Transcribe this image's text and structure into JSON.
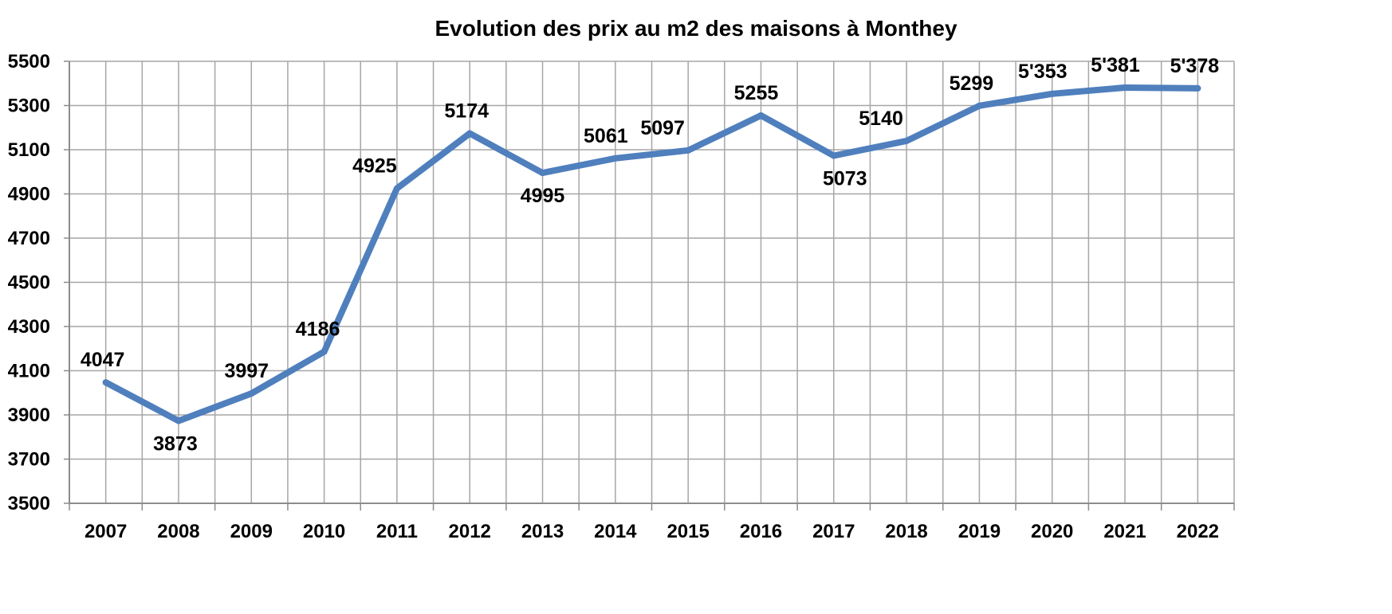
{
  "chart_data": {
    "type": "line",
    "title": "Evolution des prix au m2 des maisons à Monthey",
    "xlabel": "",
    "ylabel": "",
    "x": [
      "2007",
      "2008",
      "2009",
      "2010",
      "2011",
      "2012",
      "2013",
      "2014",
      "2015",
      "2016",
      "2017",
      "2018",
      "2019",
      "2020",
      "2021",
      "2022"
    ],
    "series": [
      {
        "values": [
          4047,
          3873,
          3997,
          4186,
          4925,
          5174,
          4995,
          5061,
          5097,
          5255,
          5073,
          5140,
          5299,
          5353,
          5381,
          5378
        ],
        "data_labels": [
          "4047",
          "3873",
          "3997",
          "4186",
          "4925",
          "5174",
          "4995",
          "5061",
          "5097",
          "5255",
          "5073",
          "5140",
          "5299",
          "5'353",
          "5'381",
          "5'378"
        ],
        "color": "#4f7fbd"
      }
    ],
    "ylim": [
      3500,
      5500
    ],
    "yticks": [
      "3500",
      "3700",
      "3900",
      "4100",
      "4300",
      "4500",
      "4700",
      "4900",
      "5100",
      "5300",
      "5500"
    ],
    "grid": true,
    "legend": "none",
    "colors": {
      "grid": "#a6a6a6",
      "axis": "#8c8c8c",
      "line": "#4f7fbd",
      "text": "#000000"
    }
  }
}
